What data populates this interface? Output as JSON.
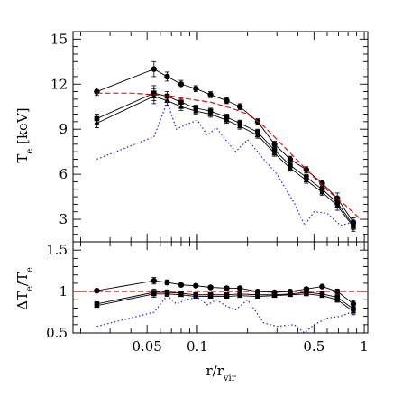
{
  "chart_data": [
    {
      "type": "line",
      "panel": "top",
      "xlabel": "r/r_vir",
      "ylabel": "T_e [keV]",
      "xscale": "log",
      "xlim": [
        0.018,
        1.05
      ],
      "ylim": [
        1.5,
        15.5
      ],
      "x_ticks": [
        0.05,
        0.1,
        0.5,
        1
      ],
      "x_tick_labels": [
        "0.05",
        "0.1",
        "0.5",
        "1"
      ],
      "y_ticks": [
        3,
        6,
        9,
        12,
        15
      ],
      "y_tick_labels": [
        "3",
        "6",
        "9",
        "12",
        "15"
      ],
      "series": [
        {
          "style": "circle-line",
          "color": "#000000",
          "x": [
            0.025,
            0.055,
            0.066,
            0.08,
            0.098,
            0.12,
            0.15,
            0.18,
            0.23,
            0.29,
            0.36,
            0.45,
            0.56,
            0.69,
            0.86
          ],
          "y": [
            11.5,
            13.0,
            12.5,
            12.0,
            11.7,
            11.3,
            10.9,
            10.5,
            9.5,
            8.0,
            7.0,
            6.3,
            5.4,
            4.4,
            2.8
          ],
          "err": [
            0.25,
            0.5,
            0.3,
            0.25,
            0.2,
            0.2,
            0.2,
            0.2,
            0.2,
            0.2,
            0.2,
            0.2,
            0.2,
            0.35,
            0.3
          ]
        },
        {
          "style": "square-line",
          "color": "#000000",
          "x": [
            0.025,
            0.055,
            0.066,
            0.08,
            0.098,
            0.12,
            0.15,
            0.18,
            0.23,
            0.29,
            0.36,
            0.45,
            0.56,
            0.69,
            0.86
          ],
          "y": [
            9.7,
            11.4,
            11.2,
            10.8,
            10.4,
            10.2,
            9.8,
            9.4,
            8.8,
            7.6,
            6.6,
            5.8,
            5.0,
            4.1,
            2.6
          ],
          "err": [
            0.3,
            0.5,
            0.3,
            0.25,
            0.2,
            0.2,
            0.2,
            0.2,
            0.2,
            0.2,
            0.2,
            0.2,
            0.2,
            0.3,
            0.3
          ]
        },
        {
          "style": "triangle-line",
          "color": "#000000",
          "x": [
            0.025,
            0.055,
            0.066,
            0.08,
            0.098,
            0.12,
            0.15,
            0.18,
            0.23,
            0.29,
            0.36,
            0.45,
            0.56,
            0.69,
            0.86
          ],
          "y": [
            9.4,
            11.2,
            10.9,
            10.5,
            10.2,
            10.0,
            9.6,
            9.2,
            8.6,
            7.4,
            6.4,
            5.6,
            4.8,
            3.9,
            2.5
          ],
          "err": [
            0.3,
            0.5,
            0.3,
            0.25,
            0.2,
            0.2,
            0.2,
            0.2,
            0.2,
            0.2,
            0.2,
            0.2,
            0.2,
            0.3,
            0.3
          ]
        },
        {
          "style": "dashed",
          "color": "#dd0000",
          "x": [
            0.025,
            0.04,
            0.055,
            0.07,
            0.09,
            0.12,
            0.16,
            0.2,
            0.25,
            0.32,
            0.4,
            0.5,
            0.62,
            0.76,
            0.95
          ],
          "y": [
            11.4,
            11.4,
            11.3,
            11.2,
            11.0,
            10.8,
            10.4,
            10.0,
            9.2,
            8.0,
            6.9,
            5.8,
            4.8,
            4.0,
            3.0
          ]
        },
        {
          "style": "dotted",
          "color": "#2222dd",
          "x": [
            0.025,
            0.055,
            0.066,
            0.075,
            0.085,
            0.1,
            0.115,
            0.13,
            0.15,
            0.17,
            0.2,
            0.25,
            0.3,
            0.38,
            0.44,
            0.5,
            0.6,
            0.72,
            0.86
          ],
          "y": [
            7.0,
            8.5,
            10.8,
            9.0,
            9.3,
            9.6,
            8.6,
            9.1,
            8.2,
            7.5,
            8.3,
            7.0,
            6.0,
            4.1,
            2.6,
            3.5,
            3.4,
            2.6,
            2.8
          ]
        }
      ]
    },
    {
      "type": "line",
      "panel": "bottom",
      "xlabel": "r/r_vir",
      "ylabel": "ΔT_e/T_e",
      "xscale": "log",
      "xlim": [
        0.018,
        1.05
      ],
      "ylim": [
        0.5,
        1.6
      ],
      "y_ticks": [
        0.5,
        1,
        1.5
      ],
      "y_tick_labels": [
        "0.5",
        "1",
        "1.5"
      ],
      "reference_line": {
        "y": 1.0,
        "style": "dashed",
        "color": "#dd0000"
      },
      "series": [
        {
          "style": "circle-line",
          "color": "#000000",
          "x": [
            0.025,
            0.055,
            0.066,
            0.08,
            0.098,
            0.12,
            0.15,
            0.18,
            0.23,
            0.29,
            0.36,
            0.45,
            0.56,
            0.69,
            0.86
          ],
          "y": [
            1.01,
            1.13,
            1.11,
            1.08,
            1.07,
            1.05,
            1.04,
            1.04,
            1.0,
            0.99,
            1.0,
            1.03,
            1.06,
            1.0,
            0.85
          ],
          "err": [
            0.02,
            0.04,
            0.03,
            0.02,
            0.02,
            0.02,
            0.02,
            0.02,
            0.02,
            0.02,
            0.02,
            0.02,
            0.02,
            0.03,
            0.04
          ]
        },
        {
          "style": "square-line",
          "color": "#000000",
          "x": [
            0.025,
            0.055,
            0.066,
            0.08,
            0.098,
            0.12,
            0.15,
            0.18,
            0.23,
            0.29,
            0.36,
            0.45,
            0.56,
            0.69,
            0.86
          ],
          "y": [
            0.85,
            0.99,
            0.99,
            0.98,
            0.96,
            0.96,
            0.96,
            0.97,
            0.96,
            0.96,
            0.97,
            0.99,
            0.97,
            0.93,
            0.79
          ],
          "err": [
            0.02,
            0.04,
            0.03,
            0.02,
            0.02,
            0.02,
            0.02,
            0.02,
            0.02,
            0.02,
            0.02,
            0.02,
            0.02,
            0.03,
            0.04
          ]
        },
        {
          "style": "triangle-line",
          "color": "#000000",
          "x": [
            0.025,
            0.055,
            0.066,
            0.08,
            0.098,
            0.12,
            0.15,
            0.18,
            0.23,
            0.29,
            0.36,
            0.45,
            0.56,
            0.69,
            0.86
          ],
          "y": [
            0.83,
            0.97,
            0.97,
            0.96,
            0.94,
            0.94,
            0.94,
            0.95,
            0.94,
            0.95,
            0.96,
            0.97,
            0.95,
            0.9,
            0.76
          ],
          "err": [
            0.02,
            0.04,
            0.03,
            0.02,
            0.02,
            0.02,
            0.02,
            0.02,
            0.02,
            0.02,
            0.02,
            0.02,
            0.02,
            0.03,
            0.04
          ]
        },
        {
          "style": "dotted",
          "color": "#2222dd",
          "x": [
            0.025,
            0.055,
            0.066,
            0.075,
            0.085,
            0.1,
            0.115,
            0.13,
            0.15,
            0.17,
            0.2,
            0.25,
            0.3,
            0.38,
            0.44,
            0.5,
            0.6,
            0.72,
            0.86
          ],
          "y": [
            0.58,
            0.75,
            0.95,
            0.85,
            0.9,
            0.93,
            0.84,
            0.9,
            0.82,
            0.78,
            0.9,
            0.62,
            0.58,
            0.6,
            0.5,
            0.6,
            0.68,
            0.7,
            0.76
          ]
        }
      ]
    }
  ]
}
